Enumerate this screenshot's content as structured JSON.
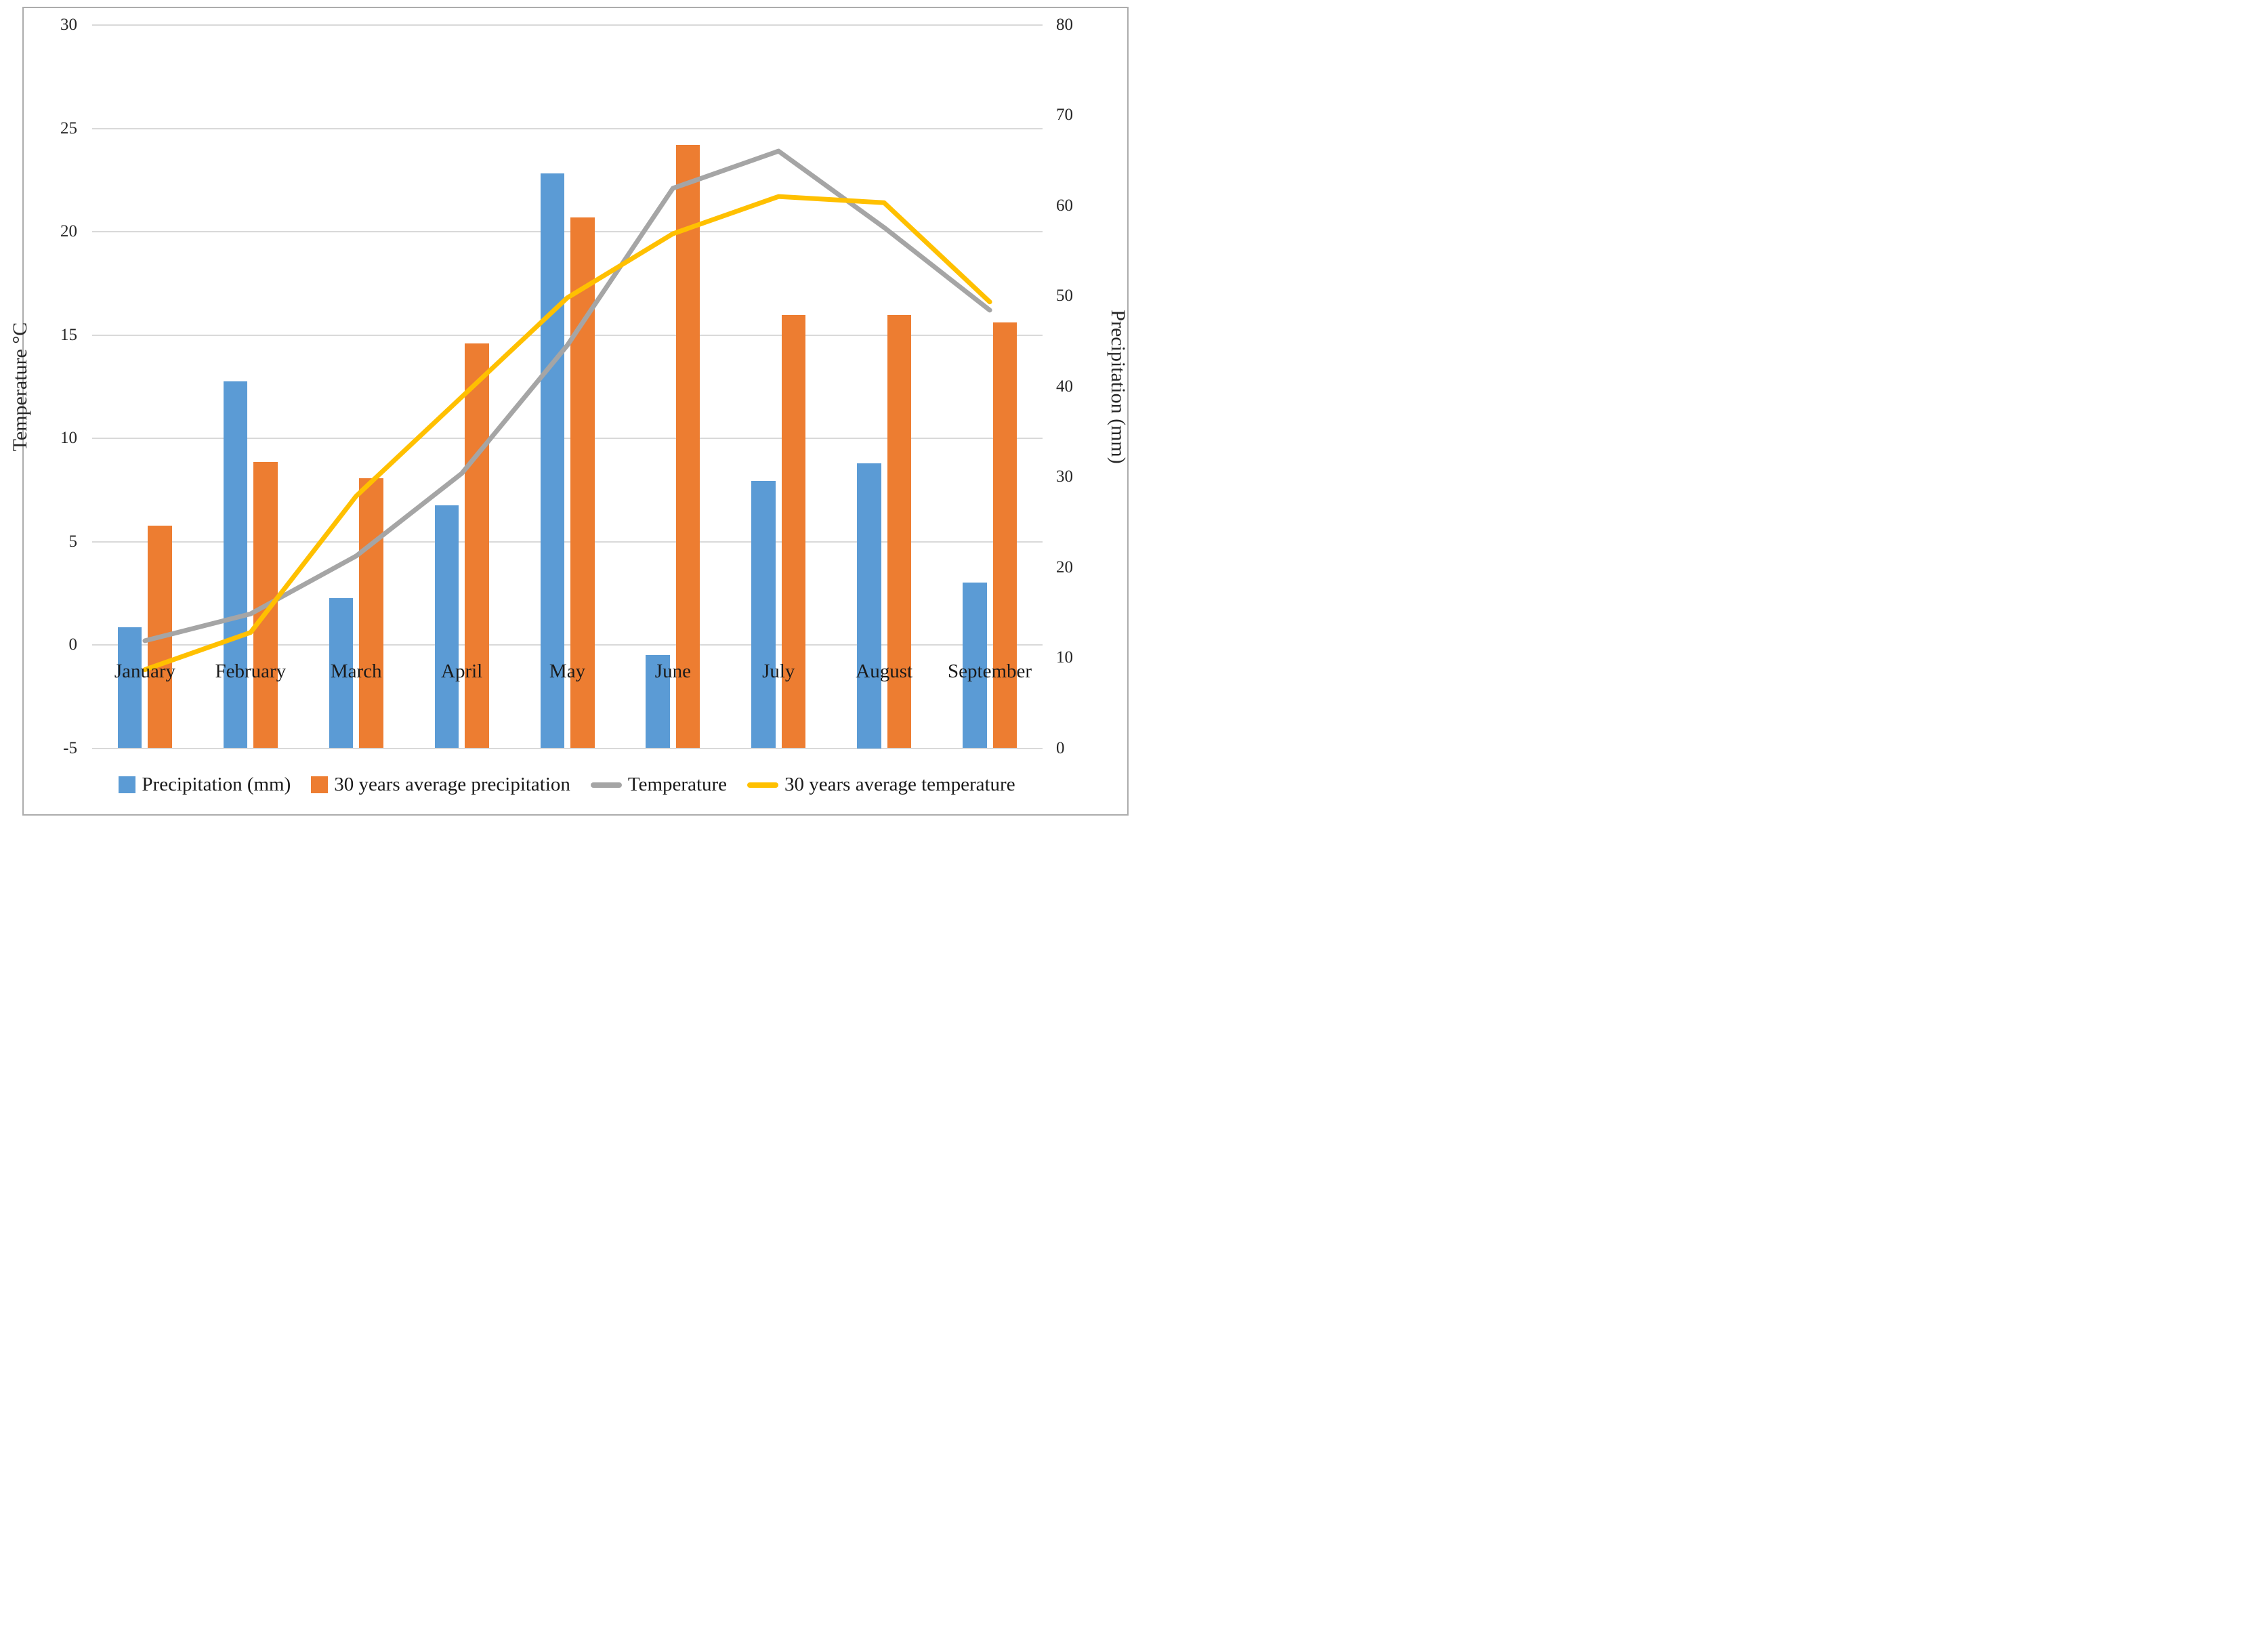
{
  "chart_data": {
    "type": "combo",
    "title": "",
    "categories": [
      "January",
      "February",
      "March",
      "April",
      "May",
      "June",
      "July",
      "August",
      "September"
    ],
    "series": [
      {
        "name": "Precipitation (mm)",
        "type": "bar",
        "axis": "right",
        "color": "#5B9BD5",
        "values": [
          13.4,
          40.6,
          16.6,
          26.9,
          63.6,
          10.3,
          29.6,
          31.5,
          18.3
        ]
      },
      {
        "name": "30 years average precipitation",
        "type": "bar",
        "axis": "right",
        "color": "#ED7D31",
        "values": [
          24.6,
          31.7,
          29.9,
          44.8,
          58.7,
          66.7,
          47.9,
          47.9,
          47.1
        ]
      },
      {
        "name": "Temperature",
        "type": "line",
        "axis": "left",
        "color": "#A5A5A5",
        "values": [
          0.2,
          1.5,
          4.3,
          8.3,
          14.5,
          22.1,
          23.9,
          20.2,
          16.2
        ]
      },
      {
        "name": "30 years average temperature",
        "type": "line",
        "axis": "left",
        "color": "#FFC000",
        "values": [
          -1.2,
          0.6,
          7.2,
          12.0,
          16.8,
          19.9,
          21.7,
          21.4,
          16.6
        ]
      }
    ],
    "left_axis": {
      "title": "Temperature °C",
      "min": -5,
      "max": 30,
      "step": 5,
      "ticks": [
        30,
        25,
        20,
        15,
        10,
        5,
        0,
        -5
      ]
    },
    "right_axis": {
      "title": "Precipitation (mm)",
      "min": 0,
      "max": 80,
      "step": 10,
      "ticks": [
        80,
        70,
        60,
        50,
        40,
        30,
        20,
        10,
        0
      ]
    },
    "grid": true,
    "legend_position": "bottom",
    "colors": {
      "grid": "#D9D9D9",
      "text": "#262626",
      "frame": "#ACACAC"
    }
  }
}
